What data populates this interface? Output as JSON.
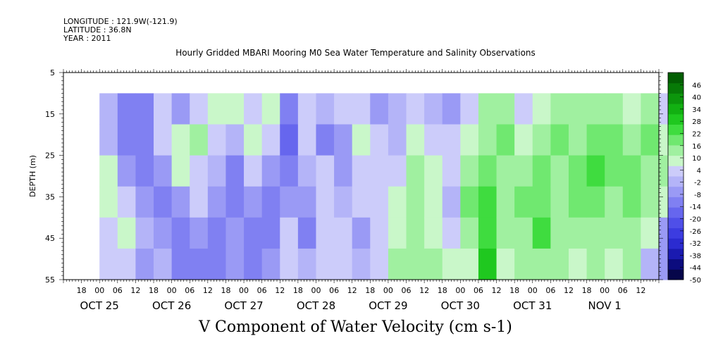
{
  "header": {
    "longitude": "LONGITUDE : 121.9W(-121.9)",
    "latitude": "LATITUDE : 36.8N",
    "year": "YEAR : 2011"
  },
  "chart_data": {
    "type": "heatmap",
    "title": "Hourly Gridded MBARI Mooring M0 Sea Water Temperature and Salinity Observations",
    "xlabel": "V Component of Water Velocity (cm s-1)",
    "ylabel": "DEPTH (m)",
    "y_ticks": [
      "5",
      "15",
      "25",
      "35",
      "45",
      "55"
    ],
    "y_range": [
      5,
      55
    ],
    "y_reversed": true,
    "data_depth_range": [
      10,
      55
    ],
    "x_range_hours": [
      "OCT 24 12:00",
      "NOV 1 18:00"
    ],
    "data_start": "OCT 25 ~00:00",
    "hour_tick_labels": [
      "18",
      "00",
      "06",
      "12",
      "18",
      "00",
      "06",
      "12",
      "18",
      "00",
      "06",
      "12",
      "18",
      "00",
      "06",
      "12",
      "18",
      "00",
      "06",
      "12",
      "18",
      "00",
      "06",
      "12",
      "18",
      "00",
      "06",
      "12",
      "18",
      "00",
      "06",
      "12"
    ],
    "date_labels": [
      "OCT 25",
      "OCT 26",
      "OCT 27",
      "OCT 28",
      "OCT 29",
      "OCT 30",
      "OCT 31",
      "NOV  1"
    ],
    "colorbar": {
      "levels": [
        "46",
        "40",
        "34",
        "28",
        "22",
        "16",
        "10",
        "4",
        "-2",
        "-8",
        "-14",
        "-20",
        "-26",
        "-32",
        "-38",
        "-44",
        "-50"
      ],
      "min": -50,
      "max": 52,
      "colors": [
        "#06064a",
        "#0c0c7e",
        "#1a1ab0",
        "#2b2bd0",
        "#3c3ce0",
        "#4f4fe8",
        "#6666ee",
        "#8080f2",
        "#9a9af5",
        "#b4b4f8",
        "#ccccfa",
        "#c9f7c9",
        "#a0f0a0",
        "#70e870",
        "#3fdc3f",
        "#1fc81f",
        "#12b012",
        "#0c960c",
        "#077a07",
        "#035e03"
      ]
    },
    "columns": [
      {
        "t": 0,
        "v": [
          -4,
          -2,
          8,
          10,
          6,
          4
        ]
      },
      {
        "t": 6,
        "v": [
          -10,
          -12,
          -8,
          2,
          8,
          4
        ]
      },
      {
        "t": 12,
        "v": [
          -12,
          -14,
          -10,
          -6,
          -4,
          -8
        ]
      },
      {
        "t": 18,
        "v": [
          6,
          4,
          -8,
          -10,
          -6,
          -4
        ]
      },
      {
        "t": 24,
        "v": [
          -6,
          10,
          8,
          -6,
          -10,
          -12
        ]
      },
      {
        "t": 30,
        "v": [
          4,
          12,
          6,
          2,
          -6,
          -10
        ]
      },
      {
        "t": 36,
        "v": [
          8,
          4,
          -4,
          -8,
          -10,
          -12
        ]
      },
      {
        "t": 42,
        "v": [
          10,
          -2,
          -10,
          -12,
          -8,
          -6
        ]
      },
      {
        "t": 48,
        "v": [
          6,
          8,
          4,
          -6,
          -10,
          -14
        ]
      },
      {
        "t": 54,
        "v": [
          8,
          2,
          -6,
          -10,
          -12,
          -8
        ]
      },
      {
        "t": 60,
        "v": [
          -12,
          -16,
          -10,
          -6,
          2,
          6
        ]
      },
      {
        "t": 66,
        "v": [
          4,
          2,
          -4,
          -8,
          -10,
          -4
        ]
      },
      {
        "t": 72,
        "v": [
          -4,
          -10,
          4,
          6,
          4,
          2
        ]
      },
      {
        "t": 78,
        "v": [
          2,
          -6,
          -8,
          -2,
          4,
          2
        ]
      },
      {
        "t": 84,
        "v": [
          6,
          8,
          4,
          2,
          -6,
          -4
        ]
      },
      {
        "t": 90,
        "v": [
          -6,
          2,
          4,
          6,
          2,
          4
        ]
      },
      {
        "t": 96,
        "v": [
          -4,
          -2,
          2,
          8,
          10,
          14
        ]
      },
      {
        "t": 102,
        "v": [
          2,
          8,
          12,
          16,
          14,
          12
        ]
      },
      {
        "t": 108,
        "v": [
          -2,
          6,
          10,
          8,
          10,
          12
        ]
      },
      {
        "t": 114,
        "v": [
          -8,
          2,
          4,
          -2,
          6,
          8
        ]
      },
      {
        "t": 120,
        "v": [
          6,
          10,
          14,
          18,
          16,
          10
        ]
      },
      {
        "t": 126,
        "v": [
          14,
          16,
          20,
          24,
          26,
          28
        ]
      },
      {
        "t": 132,
        "v": [
          12,
          18,
          16,
          14,
          14,
          10
        ]
      },
      {
        "t": 138,
        "v": [
          4,
          8,
          12,
          18,
          16,
          12
        ]
      },
      {
        "t": 144,
        "v": [
          10,
          14,
          18,
          20,
          22,
          16
        ]
      },
      {
        "t": 150,
        "v": [
          14,
          18,
          16,
          12,
          14,
          12
        ]
      },
      {
        "t": 156,
        "v": [
          12,
          16,
          20,
          18,
          12,
          10
        ]
      },
      {
        "t": 162,
        "v": [
          16,
          20,
          22,
          18,
          16,
          14
        ]
      },
      {
        "t": 168,
        "v": [
          14,
          18,
          20,
          16,
          12,
          10
        ]
      },
      {
        "t": 174,
        "v": [
          10,
          16,
          20,
          18,
          14,
          12
        ]
      },
      {
        "t": 180,
        "v": [
          12,
          18,
          16,
          14,
          10,
          -4
        ]
      },
      {
        "t": 186,
        "v": [
          6,
          10,
          14,
          10,
          -6,
          -8
        ]
      }
    ]
  }
}
